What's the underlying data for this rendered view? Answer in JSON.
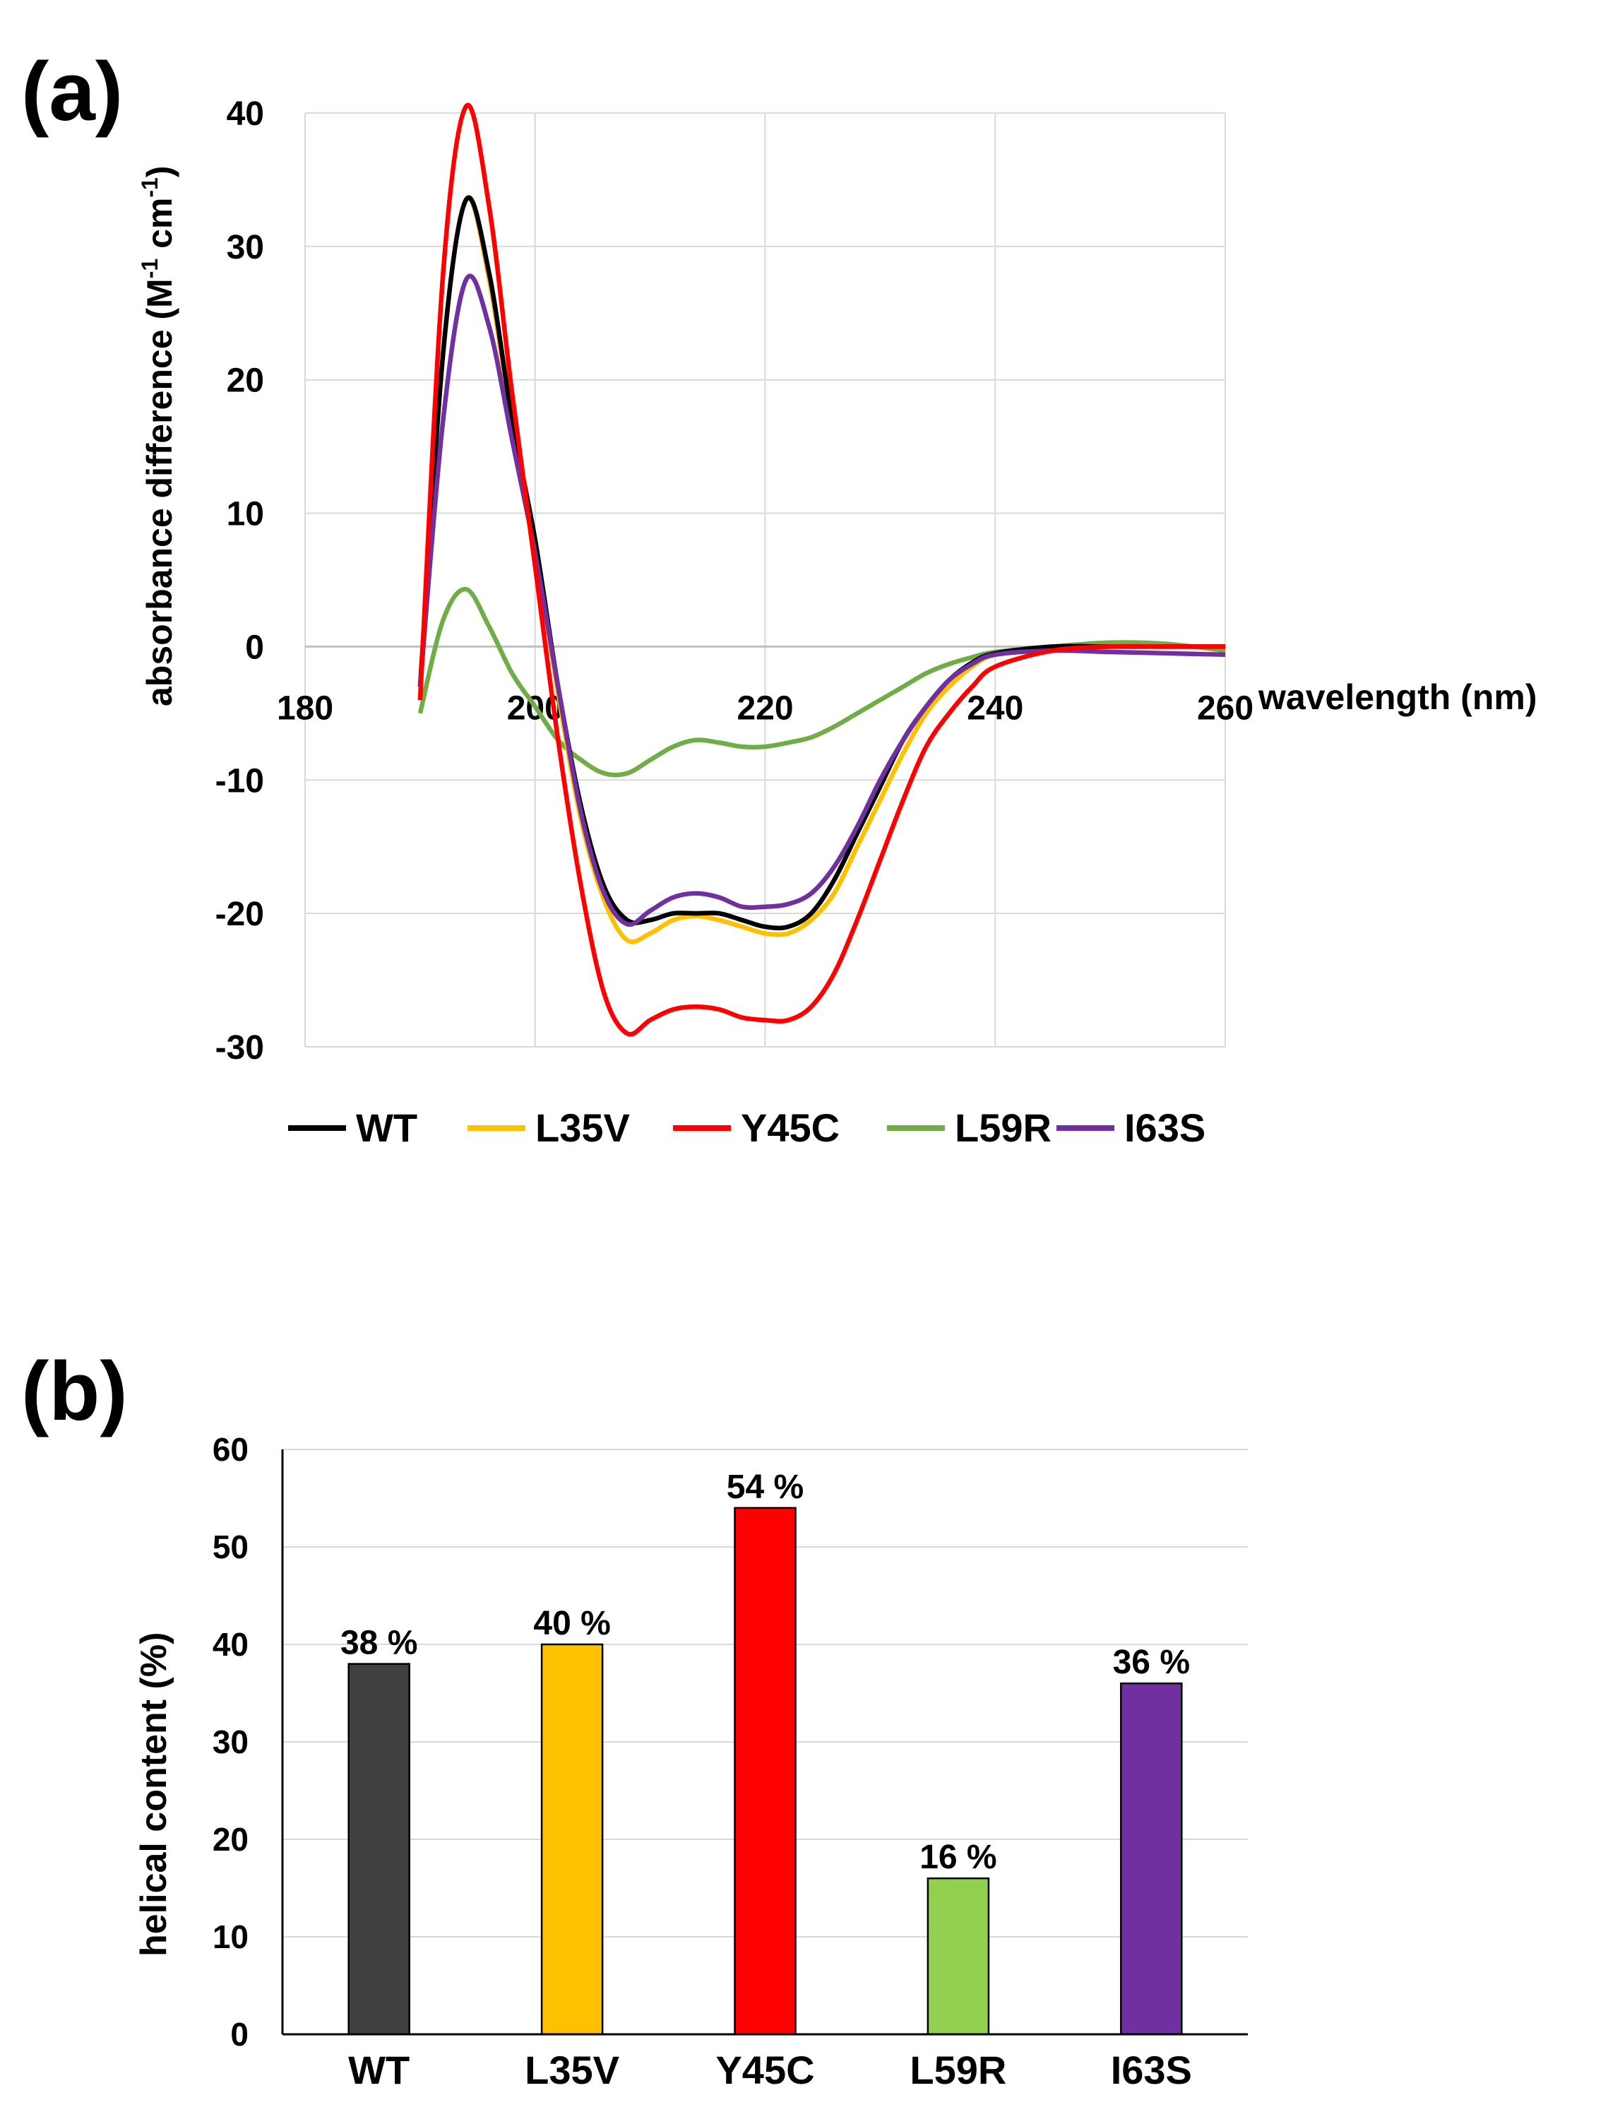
{
  "chart_data": [
    {
      "panel_label": "(a)",
      "type": "line",
      "xlabel": "wavelength (nm)",
      "ylabel": "absorbance difference (M",
      "ylabel_sup1": "-1",
      "ylabel_mid": " cm",
      "ylabel_sup2": "-1",
      "ylabel_end": ")",
      "xlim": [
        180,
        260
      ],
      "ylim": [
        -30,
        40
      ],
      "xticks": [
        180,
        200,
        220,
        240,
        260
      ],
      "xtick_labels": [
        "180",
        "200",
        "220",
        "240",
        "260"
      ],
      "yticks": [
        -30,
        -20,
        -10,
        0,
        10,
        20,
        30,
        40
      ],
      "ytick_labels": [
        "-30",
        "-20",
        "-10",
        "0",
        "10",
        "20",
        "30",
        "40"
      ],
      "grid": true,
      "legend": "bottom",
      "series": [
        {
          "name": "WT",
          "color": "#000000",
          "x": [
            190,
            192,
            194,
            196,
            198,
            200,
            202,
            204,
            206,
            208,
            210,
            212,
            214,
            216,
            218,
            220,
            222,
            224,
            226,
            228,
            230,
            232,
            234,
            236,
            238,
            240,
            245,
            250,
            255,
            260
          ],
          "y": [
            -3,
            22,
            33.5,
            28,
            17,
            8,
            -3,
            -12,
            -18,
            -20.5,
            -20.5,
            -20,
            -20,
            -20,
            -20.5,
            -21,
            -21,
            -20,
            -17.5,
            -14,
            -10.5,
            -7,
            -4.5,
            -2.5,
            -1.2,
            -0.5,
            0,
            0,
            0,
            0
          ]
        },
        {
          "name": "L35V",
          "color": "#FFC000",
          "x": [
            190,
            192,
            194,
            196,
            198,
            200,
            202,
            204,
            206,
            208,
            210,
            212,
            214,
            216,
            218,
            220,
            222,
            224,
            226,
            228,
            230,
            232,
            234,
            236,
            238,
            240,
            245,
            250,
            255,
            260
          ],
          "y": [
            -3,
            22,
            33.5,
            27.5,
            16.5,
            7.5,
            -3.5,
            -13,
            -19,
            -22,
            -21.5,
            -20.5,
            -20.2,
            -20.5,
            -21,
            -21.5,
            -21.5,
            -20.5,
            -18.5,
            -15,
            -11.5,
            -8,
            -5,
            -3,
            -1.5,
            -0.6,
            0,
            0,
            0,
            0
          ]
        },
        {
          "name": "Y45C",
          "color": "#FF0000",
          "x": [
            190,
            192,
            194,
            196,
            198,
            200,
            202,
            204,
            206,
            208,
            210,
            212,
            214,
            216,
            218,
            220,
            222,
            224,
            226,
            228,
            230,
            232,
            234,
            236,
            238,
            240,
            245,
            250,
            255,
            260
          ],
          "y": [
            -4,
            28,
            40.5,
            33,
            19,
            6,
            -7,
            -18,
            -26,
            -29,
            -28,
            -27.2,
            -27,
            -27.2,
            -27.8,
            -28,
            -28,
            -27,
            -24.5,
            -20.5,
            -16,
            -11.5,
            -7.5,
            -5,
            -3,
            -1.5,
            -0.3,
            0,
            0,
            0
          ]
        },
        {
          "name": "L59R",
          "color": "#70AD47",
          "x": [
            190,
            192,
            194,
            196,
            198,
            200,
            202,
            204,
            206,
            208,
            210,
            212,
            214,
            216,
            218,
            220,
            222,
            224,
            226,
            228,
            230,
            232,
            234,
            236,
            238,
            240,
            245,
            250,
            255,
            260
          ],
          "y": [
            -5,
            2,
            4.3,
            1.5,
            -2,
            -4.5,
            -7,
            -8.5,
            -9.5,
            -9.5,
            -8.5,
            -7.5,
            -7,
            -7.2,
            -7.5,
            -7.5,
            -7.2,
            -6.8,
            -6,
            -5,
            -4,
            -3,
            -2,
            -1.3,
            -0.8,
            -0.4,
            0,
            0.3,
            0.2,
            -0.3
          ]
        },
        {
          "name": "I63S",
          "color": "#7030A0",
          "x": [
            190,
            192,
            194,
            196,
            198,
            200,
            202,
            204,
            206,
            208,
            210,
            212,
            214,
            216,
            218,
            220,
            222,
            224,
            226,
            228,
            230,
            232,
            234,
            236,
            238,
            240,
            245,
            250,
            255,
            260
          ],
          "y": [
            -3,
            17,
            27.5,
            24,
            15.5,
            7,
            -3,
            -12.5,
            -18.5,
            -20.8,
            -19.8,
            -18.8,
            -18.5,
            -18.8,
            -19.5,
            -19.5,
            -19.3,
            -18.5,
            -16.5,
            -13.5,
            -10,
            -7,
            -4.5,
            -2.5,
            -1.3,
            -0.6,
            -0.3,
            -0.4,
            -0.5,
            -0.6
          ]
        }
      ]
    },
    {
      "panel_label": "(b)",
      "type": "bar",
      "ylabel": "helical content (%)",
      "ylim": [
        0,
        60
      ],
      "yticks": [
        0,
        10,
        20,
        30,
        40,
        50,
        60
      ],
      "ytick_labels": [
        "0",
        "10",
        "20",
        "30",
        "40",
        "50",
        "60"
      ],
      "grid": true,
      "categories": [
        "WT",
        "L35V",
        "Y45C",
        "L59R",
        "I63S"
      ],
      "values": [
        38,
        40,
        54,
        16,
        36
      ],
      "data_labels": [
        "38 %",
        "40 %",
        "54 %",
        "16 %",
        "36 %"
      ],
      "colors": [
        "#404040",
        "#FFC000",
        "#FF0000",
        "#92D050",
        "#7030A0"
      ]
    }
  ]
}
